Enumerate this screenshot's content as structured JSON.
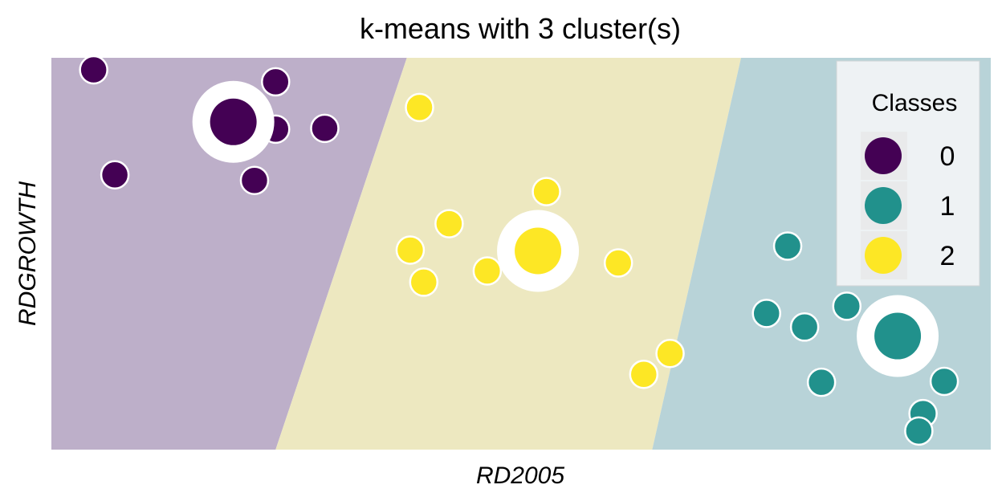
{
  "chart_data": {
    "type": "scatter",
    "title": "k-means with 3 cluster(s)",
    "xlabel": "RD2005",
    "ylabel": "RDGROWTH",
    "xlim": [
      0,
      1
    ],
    "ylim": [
      0,
      1
    ],
    "grid": false,
    "ticks": false,
    "legend": {
      "title": "Classes",
      "placement": "top-right",
      "entries": [
        "0",
        "1",
        "2"
      ]
    },
    "colors": {
      "0": "#440154",
      "1": "#21918c",
      "2": "#fde725"
    },
    "region_colors": {
      "0": "#bdafc9",
      "1": "#b8d3d8",
      "2": "#ede8c0"
    },
    "boundaries": [
      {
        "between": [
          "0",
          "2"
        ],
        "from": [
          0.2387,
          0.0
        ],
        "to": [
          0.3784,
          1.0
        ]
      },
      {
        "between": [
          "2",
          "1"
        ],
        "from": [
          0.6396,
          0.0
        ],
        "to": [
          0.7342,
          1.0
        ]
      }
    ],
    "series": [
      {
        "name": "0",
        "x": [
          0.045,
          0.2387,
          0.2117,
          0.2387,
          0.291,
          0.0676,
          0.2162
        ],
        "y": [
          0.9693,
          0.9387,
          0.8855,
          0.818,
          0.82,
          0.7014,
          0.6871
        ]
      },
      {
        "name": "1",
        "x": [
          0.7838,
          0.7613,
          0.8018,
          0.8468,
          0.8198,
          0.8964,
          0.9505,
          0.9279,
          0.9234
        ],
        "y": [
          0.5194,
          0.3476,
          0.3129,
          0.3661,
          0.1718,
          0.2904,
          0.1742,
          0.092,
          0.0475
        ]
      },
      {
        "name": "2",
        "x": [
          0.3919,
          0.527,
          0.4234,
          0.382,
          0.464,
          0.3964,
          0.6036,
          0.6586,
          0.6306
        ],
        "y": [
          0.8732,
          0.6585,
          0.5767,
          0.5092,
          0.456,
          0.4274,
          0.4765,
          0.2454,
          0.1922
        ]
      }
    ],
    "centroids": [
      {
        "cluster": "0",
        "x": 0.1937,
        "y": 0.8365
      },
      {
        "cluster": "1",
        "x": 0.9009,
        "y": 0.2899
      },
      {
        "cluster": "2",
        "x": 0.518,
        "y": 0.5072
      }
    ]
  }
}
